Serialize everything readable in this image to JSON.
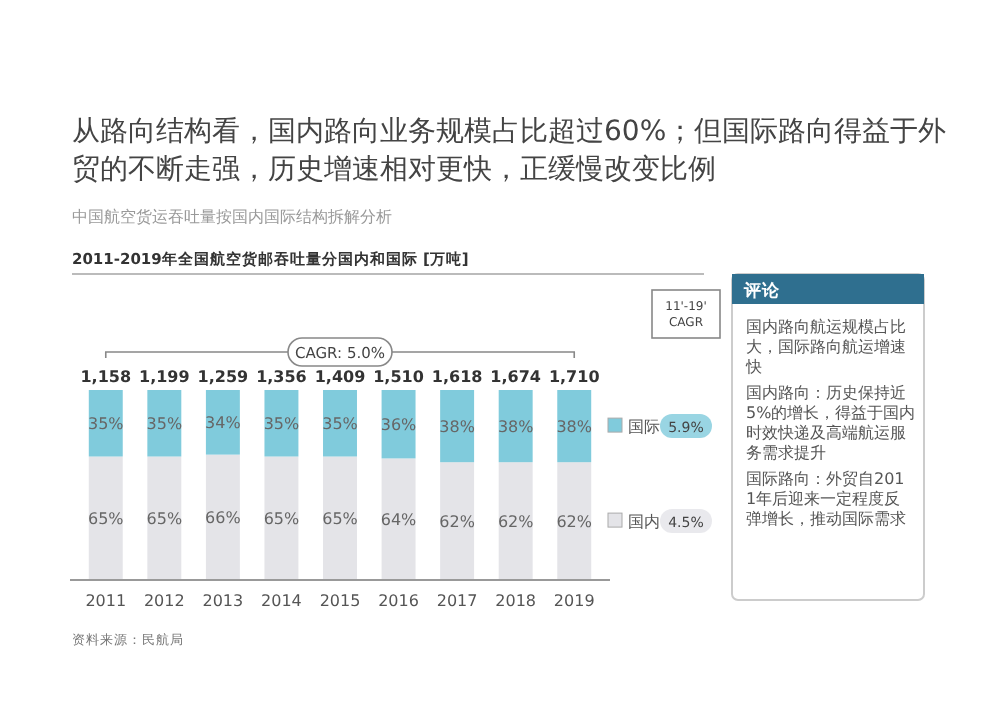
{
  "chart_data": {
    "type": "bar",
    "stacked": true,
    "legend": "right",
    "title": "从路向结构看，国内路向业务规模占比超过60%；但国际路向得益于外贸的不断走强，历史增速相对更快，正缓慢改变比例",
    "subtitle": "中国航空货运吞吐量按国内国际结构拆解分析",
    "categories": [
      "2011",
      "2012",
      "2013",
      "2014",
      "2015",
      "2016",
      "2017",
      "2018",
      "2019"
    ],
    "series": [
      {
        "name": "国内",
        "color": "#e4e4e8",
        "values": [
          65,
          65,
          66,
          65,
          65,
          64,
          62,
          62,
          62
        ],
        "value_labels": [
          "65%",
          "65%",
          "66%",
          "65%",
          "65%",
          "64%",
          "62%",
          "62%",
          "62%"
        ]
      },
      {
        "name": "国际",
        "color": "#80cbdc",
        "values": [
          35,
          35,
          34,
          35,
          35,
          36,
          38,
          38,
          38
        ],
        "value_labels": [
          "35%",
          "35%",
          "34%",
          "35%",
          "35%",
          "36%",
          "38%",
          "38%",
          "38%"
        ]
      }
    ],
    "annotations": [
      "CAGR: 5.0%",
      "11'-19' CAGR",
      "4.5%",
      "5.9%",
      "评论",
      "国内路向航运规模占比大，国际路向航运增速快",
      "国内路向：历史保持近5%的增长，得益于国内时效快递及高端航运服务需求提升",
      "国际路向：外贸自2011年后迎来一定程度反弹增长，推动国际需求",
      "资料来源：民航局",
      "2011-2019年全国航空货邮吞吐量分国内和国际 [万吨]",
      {
        "text": "1,158",
        "x": "2011",
        "y": 100
      },
      {
        "text": "1,199",
        "x": "2012",
        "y": 100
      },
      {
        "text": "1,259",
        "x": "2013",
        "y": 100
      },
      {
        "text": "1,356",
        "x": "2014",
        "y": 100
      },
      {
        "text": "1,409",
        "x": "2015",
        "y": 100
      },
      {
        "text": "1,510",
        "x": "2016",
        "y": 100
      },
      {
        "text": "1,618",
        "x": "2017",
        "y": 100
      },
      {
        "text": "1,674",
        "x": "2018",
        "y": 100
      },
      {
        "text": "1,710",
        "x": "2019",
        "y": 100
      }
    ]
  }
}
